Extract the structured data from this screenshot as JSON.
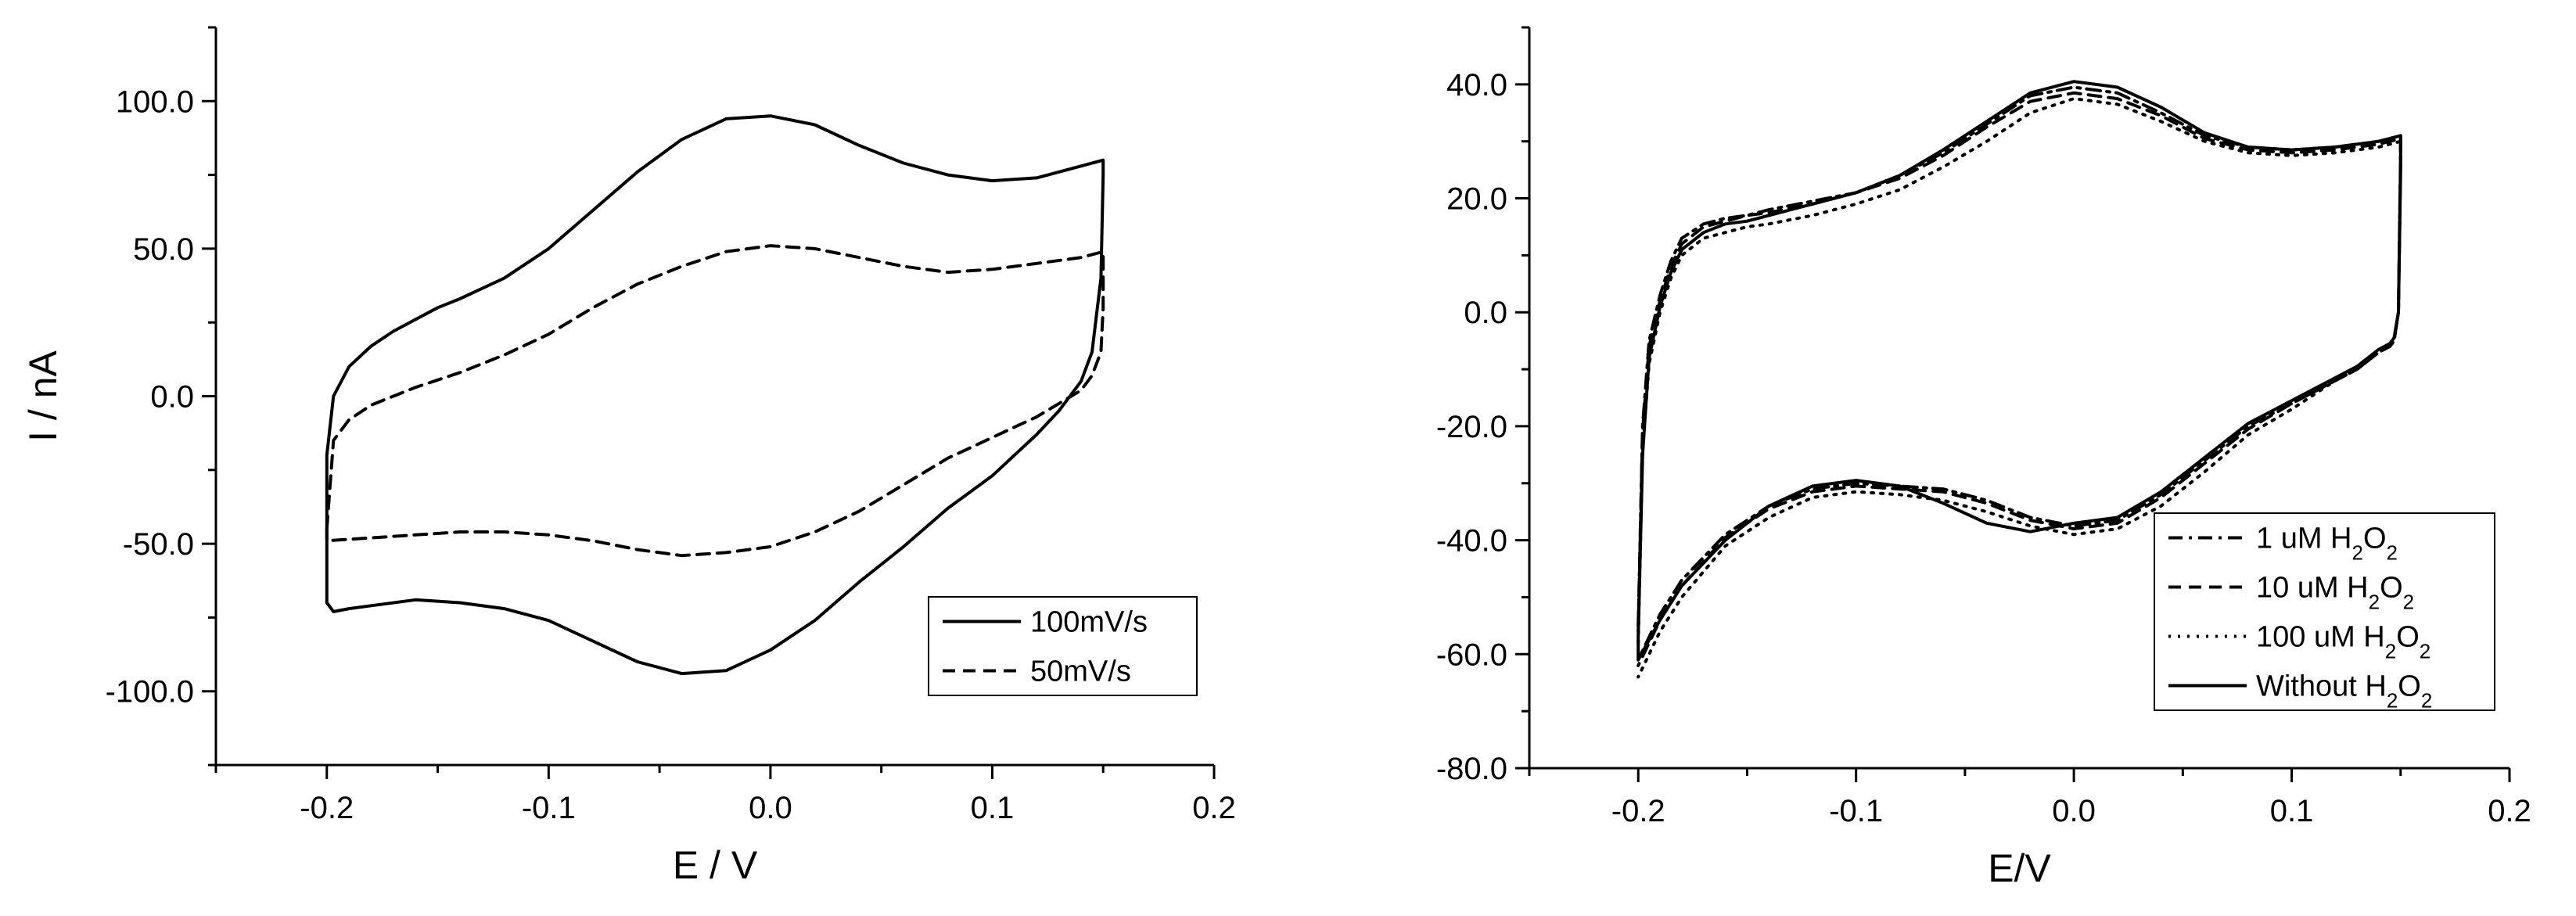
{
  "chart_data": [
    {
      "type": "line",
      "title": "",
      "xlabel": "E / V",
      "ylabel": "I / nA",
      "xlim": [
        -0.25,
        0.2
      ],
      "ylim": [
        -125,
        125
      ],
      "x_ticks": [
        -0.2,
        -0.1,
        0.0,
        0.1,
        0.2
      ],
      "x_tick_labels": [
        "-0.2",
        "-0.1",
        "0.0",
        "0.1",
        "0.2"
      ],
      "y_ticks": [
        -100,
        -50,
        0,
        50,
        100
      ],
      "y_tick_labels": [
        "-100.0",
        "-50.0",
        "0.0",
        "50.0",
        "100.0"
      ],
      "grid": false,
      "legend_position": "bottom-right",
      "series": [
        {
          "name": "100mV/s",
          "style": "solid",
          "x": [
            -0.2,
            -0.197,
            -0.19,
            -0.18,
            -0.17,
            -0.16,
            -0.15,
            -0.14,
            -0.12,
            -0.1,
            -0.08,
            -0.06,
            -0.04,
            -0.02,
            0.0,
            0.02,
            0.04,
            0.06,
            0.08,
            0.1,
            0.12,
            0.14,
            0.15,
            0.15,
            0.149,
            0.145,
            0.14,
            0.13,
            0.12,
            0.1,
            0.08,
            0.06,
            0.04,
            0.02,
            0.0,
            -0.02,
            -0.04,
            -0.06,
            -0.08,
            -0.1,
            -0.12,
            -0.14,
            -0.16,
            -0.18,
            -0.19,
            -0.197,
            -0.2,
            -0.2
          ],
          "y": [
            -20,
            0,
            10,
            17,
            22,
            26,
            30,
            33,
            40,
            50,
            63,
            76,
            87,
            94,
            95,
            92,
            85,
            79,
            75,
            73,
            74,
            78,
            80,
            75,
            40,
            15,
            5,
            -5,
            -13,
            -27,
            -38,
            -51,
            -63,
            -76,
            -86,
            -93,
            -94,
            -90,
            -83,
            -76,
            -72,
            -70,
            -69,
            -71,
            -72,
            -73,
            -70,
            -20
          ]
        },
        {
          "name": "50mV/s",
          "style": "dashed",
          "x": [
            -0.2,
            -0.197,
            -0.19,
            -0.18,
            -0.16,
            -0.14,
            -0.12,
            -0.1,
            -0.08,
            -0.06,
            -0.04,
            -0.02,
            0.0,
            0.02,
            0.04,
            0.06,
            0.08,
            0.1,
            0.12,
            0.14,
            0.15,
            0.15,
            0.149,
            0.145,
            0.14,
            0.12,
            0.1,
            0.08,
            0.06,
            0.04,
            0.02,
            0.0,
            -0.02,
            -0.04,
            -0.06,
            -0.08,
            -0.1,
            -0.12,
            -0.14,
            -0.16,
            -0.18,
            -0.2,
            -0.2
          ],
          "y": [
            -45,
            -15,
            -8,
            -3,
            3,
            8,
            14,
            21,
            30,
            38,
            44,
            49,
            51,
            50,
            47,
            44,
            42,
            43,
            45,
            47,
            49,
            30,
            15,
            7,
            2,
            -7,
            -14,
            -21,
            -30,
            -39,
            -46,
            -51,
            -53,
            -54,
            -52,
            -49,
            -47,
            -46,
            -46,
            -47,
            -48,
            -49,
            -45
          ]
        }
      ]
    },
    {
      "type": "line",
      "title": "",
      "xlabel": "E/V",
      "ylabel": "",
      "xlim": [
        -0.25,
        0.2
      ],
      "ylim": [
        -80,
        50
      ],
      "x_ticks": [
        -0.2,
        -0.1,
        0.0,
        0.1,
        0.2
      ],
      "x_tick_labels": [
        "-0.2",
        "-0.1",
        "0.0",
        "0.1",
        "0.2"
      ],
      "y_ticks": [
        -80,
        -60,
        -40,
        -20,
        0,
        20,
        40
      ],
      "y_tick_labels": [
        "-80.0",
        "-60.0",
        "-40.0",
        "-20.0",
        "0.0",
        "20.0",
        "40.0"
      ],
      "grid": false,
      "legend_position": "bottom-right",
      "legend_title": "",
      "series": [
        {
          "name": "1 uM H₂O₂",
          "style": "dashdot",
          "x": [
            -0.2,
            -0.198,
            -0.195,
            -0.19,
            -0.185,
            -0.18,
            -0.17,
            -0.16,
            -0.15,
            -0.14,
            -0.12,
            -0.1,
            -0.08,
            -0.06,
            -0.04,
            -0.02,
            0.0,
            0.02,
            0.04,
            0.06,
            0.08,
            0.1,
            0.12,
            0.14,
            0.15,
            0.15,
            0.149,
            0.147,
            0.145,
            0.14,
            0.13,
            0.12,
            0.1,
            0.08,
            0.06,
            0.04,
            0.02,
            0.0,
            -0.02,
            -0.04,
            -0.06,
            -0.08,
            -0.1,
            -0.12,
            -0.14,
            -0.16,
            -0.18,
            -0.19,
            -0.2
          ],
          "y": [
            -55,
            -20,
            -5,
            3,
            9,
            13,
            15.5,
            16.5,
            17,
            18,
            19.5,
            21,
            24,
            28,
            33,
            38,
            39.5,
            38.5,
            35,
            31,
            29,
            28.5,
            29,
            30,
            31,
            28,
            0,
            -5,
            -6,
            -7,
            -10,
            -12,
            -16,
            -20,
            -26,
            -32,
            -36.5,
            -37.5,
            -36,
            -33,
            -31,
            -30.5,
            -30,
            -31,
            -34,
            -39,
            -47,
            -53,
            -61
          ]
        },
        {
          "name": "10 uM H₂O₂",
          "style": "dashed",
          "x": [
            -0.2,
            -0.198,
            -0.195,
            -0.19,
            -0.185,
            -0.18,
            -0.17,
            -0.16,
            -0.15,
            -0.14,
            -0.12,
            -0.1,
            -0.08,
            -0.06,
            -0.04,
            -0.02,
            0.0,
            0.02,
            0.04,
            0.06,
            0.08,
            0.1,
            0.12,
            0.14,
            0.15,
            0.15,
            0.149,
            0.147,
            0.145,
            0.14,
            0.13,
            0.12,
            0.1,
            0.08,
            0.06,
            0.04,
            0.02,
            0.0,
            -0.02,
            -0.04,
            -0.06,
            -0.08,
            -0.1,
            -0.12,
            -0.14,
            -0.16,
            -0.18,
            -0.19,
            -0.2
          ],
          "y": [
            -56,
            -21,
            -6,
            2,
            8,
            12,
            15,
            16,
            17,
            17.5,
            19,
            21,
            23.5,
            27.5,
            32.5,
            37,
            38.5,
            37.5,
            34.5,
            30.5,
            28.5,
            28,
            28.5,
            29.5,
            30.5,
            27,
            0,
            -5,
            -6,
            -7,
            -10,
            -12,
            -16,
            -20.5,
            -26.5,
            -32.5,
            -37,
            -38,
            -36.5,
            -33.5,
            -31.5,
            -31,
            -30.5,
            -31.5,
            -34.5,
            -39.5,
            -48,
            -54,
            -62
          ]
        },
        {
          "name": "100 uM H₂O₂",
          "style": "dotted",
          "x": [
            -0.2,
            -0.198,
            -0.195,
            -0.19,
            -0.185,
            -0.18,
            -0.17,
            -0.16,
            -0.15,
            -0.14,
            -0.12,
            -0.1,
            -0.08,
            -0.06,
            -0.04,
            -0.02,
            0.0,
            0.02,
            0.04,
            0.06,
            0.08,
            0.1,
            0.12,
            0.14,
            0.15,
            0.15,
            0.149,
            0.147,
            0.145,
            0.14,
            0.13,
            0.12,
            0.1,
            0.08,
            0.06,
            0.04,
            0.02,
            0.0,
            -0.02,
            -0.04,
            -0.06,
            -0.08,
            -0.1,
            -0.12,
            -0.14,
            -0.16,
            -0.18,
            -0.19,
            -0.2
          ],
          "y": [
            -58,
            -24,
            -9,
            0,
            6,
            10,
            13,
            14,
            15,
            15.5,
            17,
            19,
            21.5,
            25.5,
            30,
            35,
            37.5,
            36.5,
            33.5,
            30,
            28,
            27.5,
            28,
            29,
            30,
            26,
            0,
            -5,
            -6,
            -7,
            -10,
            -12,
            -17,
            -21.5,
            -28,
            -34,
            -38,
            -39,
            -37.5,
            -35,
            -33,
            -32,
            -31.5,
            -32.5,
            -36,
            -41,
            -50,
            -56,
            -64
          ]
        },
        {
          "name": "Without H₂O₂",
          "style": "solid",
          "x": [
            -0.2,
            -0.198,
            -0.195,
            -0.19,
            -0.185,
            -0.18,
            -0.17,
            -0.16,
            -0.15,
            -0.14,
            -0.12,
            -0.1,
            -0.08,
            -0.06,
            -0.04,
            -0.02,
            0.0,
            0.02,
            0.04,
            0.06,
            0.08,
            0.1,
            0.12,
            0.14,
            0.15,
            0.15,
            0.149,
            0.147,
            0.145,
            0.14,
            0.13,
            0.12,
            0.1,
            0.08,
            0.06,
            0.04,
            0.02,
            0.0,
            -0.02,
            -0.04,
            -0.06,
            -0.08,
            -0.1,
            -0.12,
            -0.14,
            -0.16,
            -0.18,
            -0.19,
            -0.2,
            -0.2
          ],
          "y": [
            -57,
            -25,
            -8,
            1,
            7,
            11,
            14,
            15.5,
            16,
            17,
            19,
            21,
            24,
            28.5,
            33.5,
            38.5,
            40.5,
            39.5,
            36,
            31.5,
            29,
            28.5,
            29,
            30,
            31,
            25,
            0,
            -4.5,
            -5.5,
            -6.5,
            -9.5,
            -11.5,
            -15.5,
            -19.5,
            -25.5,
            -31.5,
            -36,
            -37,
            -38.5,
            -37,
            -33.5,
            -30.5,
            -29.5,
            -30.5,
            -34,
            -40,
            -48,
            -54,
            -61,
            -57
          ]
        }
      ]
    }
  ]
}
